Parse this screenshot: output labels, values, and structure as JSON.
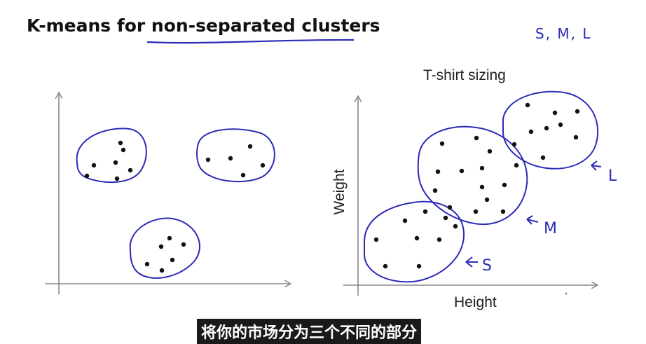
{
  "slide": {
    "title_prefix": "K-means for ",
    "title_emphasis": "non-separated clusters",
    "size_note": "S, M, L"
  },
  "subtitle": "将你的市场分为三个不同的部分",
  "colors": {
    "ink": "#2b2bb8",
    "axis": "#888888",
    "dot": "#111111"
  },
  "chart_data": [
    {
      "type": "scatter",
      "title": "",
      "xlabel": "",
      "ylabel": "",
      "clusters": [
        {
          "points": [
            [
              134,
              236
            ],
            [
              124,
              251
            ],
            [
              165,
              232
            ],
            [
              176,
              214
            ],
            [
              186,
              243
            ],
            [
              167,
              255
            ],
            [
              172,
              204
            ]
          ]
        },
        {
          "points": [
            [
              297,
              228
            ],
            [
              329,
              226
            ],
            [
              357,
              209
            ],
            [
              375,
              236
            ],
            [
              347,
              250
            ]
          ]
        },
        {
          "points": [
            [
              242,
              340
            ],
            [
              230,
              352
            ],
            [
              262,
              349
            ],
            [
              246,
              371
            ],
            [
              231,
              386
            ],
            [
              210,
              377
            ]
          ]
        }
      ]
    },
    {
      "type": "scatter",
      "title": "T-shirt sizing",
      "xlabel": "Height",
      "ylabel": "Weight",
      "clusters": [
        {
          "label": "S",
          "points": [
            [
              537,
              342
            ],
            [
              578,
              315
            ],
            [
              607,
              302
            ],
            [
              636,
              311
            ],
            [
              650,
              323
            ],
            [
              595,
              340
            ],
            [
              627,
              342
            ],
            [
              550,
              380
            ],
            [
              598,
              380
            ]
          ]
        },
        {
          "label": "M",
          "points": [
            [
              631,
              205
            ],
            [
              680,
              197
            ],
            [
              699,
              216
            ],
            [
              625,
              245
            ],
            [
              659,
              244
            ],
            [
              688,
              240
            ],
            [
              737,
              236
            ],
            [
              720,
              264
            ],
            [
              688,
              267
            ],
            [
              621,
              272
            ],
            [
              695,
              285
            ],
            [
              642,
              296
            ],
            [
              679,
              302
            ],
            [
              718,
              302
            ]
          ]
        },
        {
          "label": "L",
          "points": [
            [
              753,
              150
            ],
            [
              792,
              161
            ],
            [
              824,
              159
            ],
            [
              758,
              188
            ],
            [
              780,
              183
            ],
            [
              800,
              178
            ],
            [
              822,
              196
            ],
            [
              734,
              206
            ],
            [
              775,
              225
            ]
          ]
        }
      ]
    }
  ]
}
